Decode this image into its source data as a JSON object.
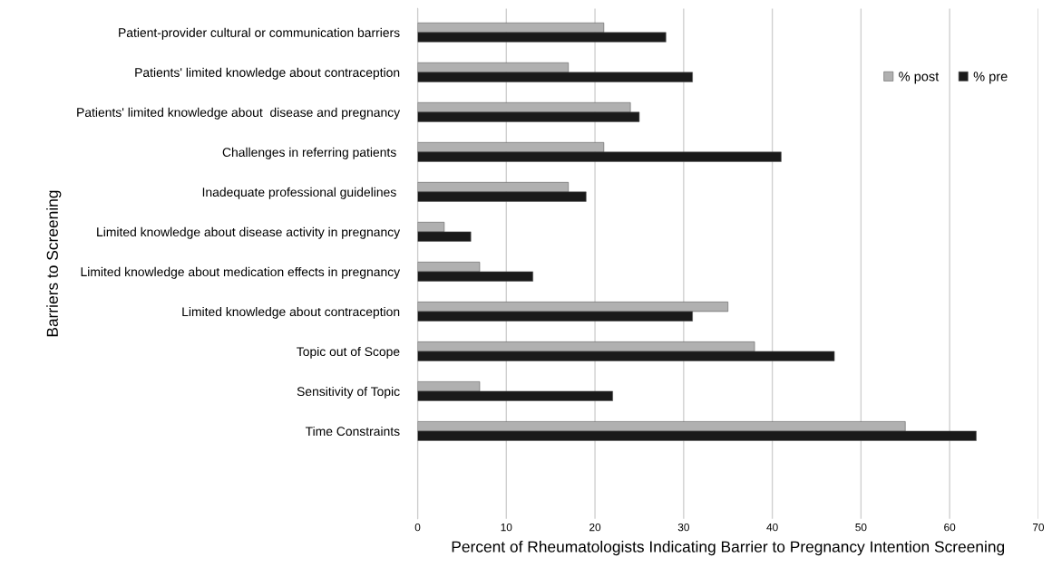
{
  "chart_data": {
    "type": "bar",
    "orientation": "horizontal",
    "xlabel": "Percent of Rheumatologists Indicating Barrier to Pregnancy Intention Screening",
    "ylabel": "Barriers to Screening",
    "categories": [
      "Patient-provider cultural or communication barriers",
      "Patients' limited knowledge about contraception",
      "Patients' limited knowledge about  disease and pregnancy",
      "Challenges in referring patients ",
      "Inadequate professional guidelines ",
      "Limited knowledge about disease activity in pregnancy",
      "Limited knowledge about medication effects in pregnancy",
      "Limited knowledge about contraception",
      "Topic out of Scope",
      "Sensitivity of Topic",
      "Time Constraints"
    ],
    "series": [
      {
        "name": "% post",
        "color": "#b0b0b0",
        "values": [
          21,
          17,
          24,
          21,
          17,
          3,
          7,
          35,
          38,
          7,
          55
        ]
      },
      {
        "name": "% pre",
        "color": "#1a1a1a",
        "values": [
          28,
          31,
          25,
          41,
          19,
          6,
          13,
          31,
          47,
          22,
          63
        ]
      }
    ],
    "xlim": [
      0,
      70
    ],
    "xticks": [
      0,
      10,
      20,
      30,
      40,
      50,
      60,
      70
    ],
    "grid": "x",
    "legend": "top right"
  }
}
